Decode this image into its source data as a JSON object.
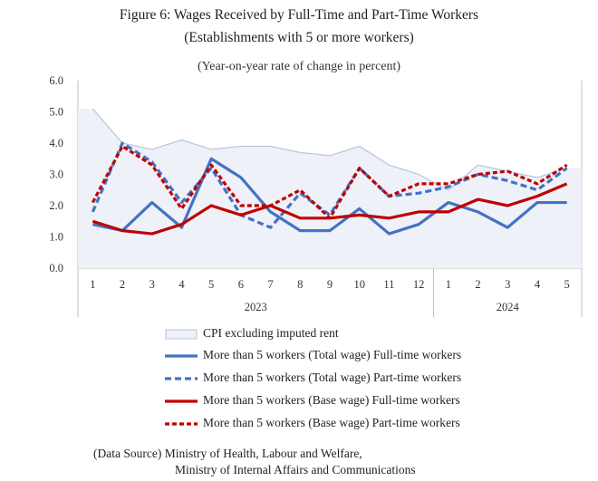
{
  "title_line1": "Figure 6: Wages Received by Full-Time and Part-Time Workers",
  "title_line2": "(Establishments with 5 or more workers)",
  "unit_label": "(Year-on-year rate of change in percent)",
  "source_line1": "(Data Source) Ministry of Health, Labour and Welfare,",
  "source_line2": "Ministry of Internal Affairs and Communications",
  "colors": {
    "cpi_fill": "#eef1f7",
    "cpi_line": "#b7c5df",
    "blue": "#4472c4",
    "red": "#c00000",
    "axis": "#bfbfbf"
  },
  "chart_data": {
    "type": "line",
    "ylim": [
      0,
      6
    ],
    "yticks": [
      "0.0",
      "1.0",
      "2.0",
      "3.0",
      "4.0",
      "5.0",
      "6.0"
    ],
    "categories": [
      "1",
      "2",
      "3",
      "4",
      "5",
      "6",
      "7",
      "8",
      "9",
      "10",
      "11",
      "12",
      "1",
      "2",
      "3",
      "4",
      "5"
    ],
    "years": [
      {
        "label": "2023",
        "start": 0,
        "end": 11
      },
      {
        "label": "2024",
        "start": 12,
        "end": 16
      }
    ],
    "series": [
      {
        "name": "CPI excluding imputed rent",
        "style": "area",
        "values": [
          5.1,
          4.0,
          3.8,
          4.1,
          3.8,
          3.9,
          3.9,
          3.7,
          3.6,
          3.9,
          3.3,
          3.0,
          2.5,
          3.3,
          3.1,
          2.9,
          3.2
        ]
      },
      {
        "name": "More than 5 workers (Total wage) Full-time workers",
        "style": "blue-solid",
        "values": [
          1.4,
          1.2,
          2.1,
          1.3,
          3.5,
          2.9,
          1.8,
          1.2,
          1.2,
          1.9,
          1.1,
          1.4,
          2.1,
          1.8,
          1.3,
          2.1,
          2.1
        ]
      },
      {
        "name": "More than 5 workers (Total wage) Part-time workers",
        "style": "blue-dash",
        "values": [
          1.8,
          4.0,
          3.4,
          2.1,
          3.2,
          1.7,
          1.3,
          2.4,
          1.7,
          3.2,
          2.3,
          2.4,
          2.6,
          3.0,
          2.8,
          2.5,
          3.2
        ]
      },
      {
        "name": "More than 5 workers (Base wage) Full-time workers",
        "style": "red-solid",
        "values": [
          1.5,
          1.2,
          1.1,
          1.4,
          2.0,
          1.7,
          2.0,
          1.6,
          1.6,
          1.7,
          1.6,
          1.8,
          1.8,
          2.2,
          2.0,
          2.3,
          2.7
        ]
      },
      {
        "name": "More than 5 workers (Base wage) Part-time workers",
        "style": "red-dash",
        "values": [
          2.1,
          3.9,
          3.3,
          1.9,
          3.3,
          2.0,
          2.0,
          2.5,
          1.6,
          3.2,
          2.3,
          2.7,
          2.7,
          3.0,
          3.1,
          2.7,
          3.3
        ]
      }
    ]
  }
}
